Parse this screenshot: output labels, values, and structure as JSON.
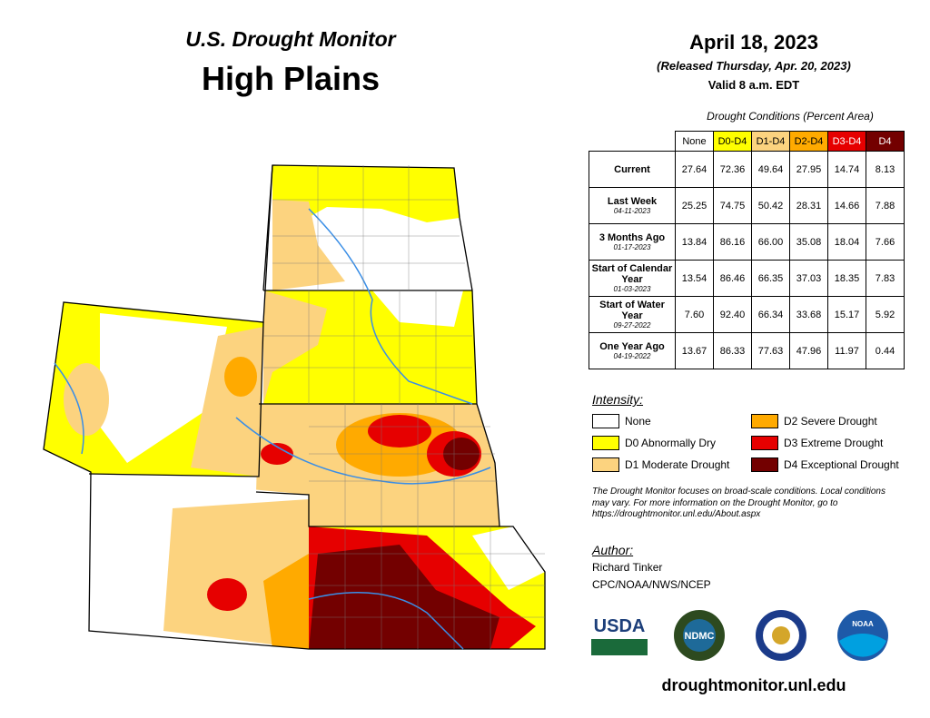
{
  "header": {
    "subtitle": "U.S. Drought Monitor",
    "title": "High Plains"
  },
  "date": {
    "map_date": "April 18, 2023",
    "released": "(Released Thursday, Apr. 20, 2023)",
    "valid": "Valid 8 a.m. EDT"
  },
  "table": {
    "caption": "Drought Conditions (Percent Area)",
    "columns": [
      {
        "label": "None",
        "color": "#ffffff",
        "text_color": "#000000"
      },
      {
        "label": "D0-D4",
        "color": "#ffff00",
        "text_color": "#000000"
      },
      {
        "label": "D1-D4",
        "color": "#fcd37f",
        "text_color": "#000000"
      },
      {
        "label": "D2-D4",
        "color": "#ffaa00",
        "text_color": "#000000"
      },
      {
        "label": "D3-D4",
        "color": "#e60000",
        "text_color": "#ffffff"
      },
      {
        "label": "D4",
        "color": "#730000",
        "text_color": "#ffffff"
      }
    ],
    "rows": [
      {
        "label": "Current",
        "values": [
          "27.64",
          "72.36",
          "49.64",
          "27.95",
          "14.74",
          "8.13"
        ]
      },
      {
        "label": "Last Week",
        "date": "04-11-2023",
        "values": [
          "25.25",
          "74.75",
          "50.42",
          "28.31",
          "14.66",
          "7.88"
        ]
      },
      {
        "label": "3 Months Ago",
        "date": "01-17-2023",
        "values": [
          "13.84",
          "86.16",
          "66.00",
          "35.08",
          "18.04",
          "7.66"
        ]
      },
      {
        "label": "Start of Calendar Year",
        "date": "01-03-2023",
        "values": [
          "13.54",
          "86.46",
          "66.35",
          "37.03",
          "18.35",
          "7.83"
        ]
      },
      {
        "label": "Start of Water Year",
        "date": "09-27-2022",
        "values": [
          "7.60",
          "92.40",
          "66.34",
          "33.68",
          "15.17",
          "5.92"
        ]
      },
      {
        "label": "One Year Ago",
        "date": "04-19-2022",
        "values": [
          "13.67",
          "86.33",
          "77.63",
          "47.96",
          "11.97",
          "0.44"
        ]
      }
    ]
  },
  "legend": {
    "title": "Intensity:",
    "items": [
      {
        "label": "None",
        "color": "#ffffff"
      },
      {
        "label": "D0 Abnormally Dry",
        "color": "#ffff00"
      },
      {
        "label": "D1 Moderate Drought",
        "color": "#fcd37f"
      },
      {
        "label": "D2 Severe Drought",
        "color": "#ffaa00"
      },
      {
        "label": "D3 Extreme Drought",
        "color": "#e60000"
      },
      {
        "label": "D4 Exceptional Drought",
        "color": "#730000"
      }
    ]
  },
  "note": "The Drought Monitor focuses on broad-scale conditions. Local conditions may vary. For more information on the Drought Monitor, go to https://droughtmonitor.unl.edu/About.aspx",
  "author": {
    "heading": "Author:",
    "name": "Richard Tinker",
    "org": "CPC/NOAA/NWS/NCEP"
  },
  "logos": [
    "USDA",
    "NDMC",
    "NOAA"
  ],
  "url": "droughtmonitor.unl.edu"
}
